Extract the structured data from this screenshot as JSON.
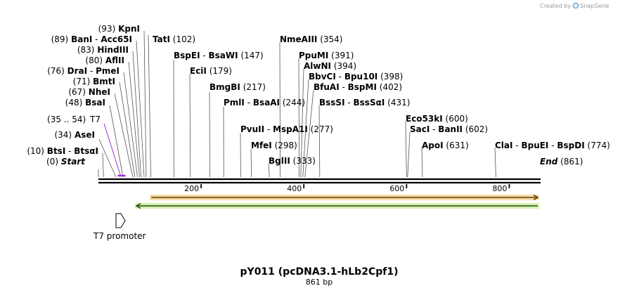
{
  "credit": {
    "prefix": "Created by",
    "brand": "SnapGene",
    "logo_color": "#5aa0d6"
  },
  "sequence": {
    "name": "pY011 (pcDNA3.1-hLb2Cpf1)",
    "length": 861,
    "length_label": "861 bp"
  },
  "ruler": {
    "ticks": [
      200,
      400,
      600,
      800
    ]
  },
  "sites": [
    {
      "pos": "(0)",
      "names": [
        "Start"
      ],
      "italic": true
    },
    {
      "pos": "(10)",
      "names": [
        "BtsI",
        "BtsαI"
      ]
    },
    {
      "pos": "(34)",
      "names": [
        "AseI"
      ]
    },
    {
      "pos": "(48)",
      "names": [
        "BsaI"
      ]
    },
    {
      "pos": "(67)",
      "names": [
        "NheI"
      ]
    },
    {
      "pos": "(71)",
      "names": [
        "BmtI"
      ]
    },
    {
      "pos": "(76)",
      "names": [
        "DraI",
        "PmeI"
      ]
    },
    {
      "pos": "(80)",
      "names": [
        "AflII"
      ]
    },
    {
      "pos": "(83)",
      "names": [
        "HindIII"
      ]
    },
    {
      "pos": "(89)",
      "names": [
        "BanI",
        "Acc65I"
      ]
    },
    {
      "pos": "(93)",
      "names": [
        "KpnI"
      ]
    },
    {
      "pos": "(102)",
      "names": [
        "TatI"
      ]
    },
    {
      "pos": "(147)",
      "names": [
        "BspEI",
        "BsaWI"
      ]
    },
    {
      "pos": "(179)",
      "names": [
        "EciI"
      ]
    },
    {
      "pos": "(217)",
      "names": [
        "BmgBI"
      ]
    },
    {
      "pos": "(244)",
      "names": [
        "PmlI",
        "BsaAI"
      ]
    },
    {
      "pos": "(277)",
      "names": [
        "PvuII",
        "MspA1I"
      ]
    },
    {
      "pos": "(298)",
      "names": [
        "MfeI"
      ]
    },
    {
      "pos": "(333)",
      "names": [
        "BglII"
      ]
    },
    {
      "pos": "(354)",
      "names": [
        "NmeAIII"
      ]
    },
    {
      "pos": "(391)",
      "names": [
        "PpuMI"
      ]
    },
    {
      "pos": "(394)",
      "names": [
        "AlwNI"
      ]
    },
    {
      "pos": "(398)",
      "names": [
        "BbvCI",
        "Bpu10I"
      ]
    },
    {
      "pos": "(402)",
      "names": [
        "BfuAI",
        "BspMI"
      ]
    },
    {
      "pos": "(431)",
      "names": [
        "BssSI",
        "BssSαI"
      ]
    },
    {
      "pos": "(600)",
      "names": [
        "Eco53kI"
      ]
    },
    {
      "pos": "(602)",
      "names": [
        "SacI",
        "BanII"
      ]
    },
    {
      "pos": "(631)",
      "names": [
        "ApoI"
      ]
    },
    {
      "pos": "(774)",
      "names": [
        "ClaI",
        "BpuEI",
        "BspDI"
      ]
    },
    {
      "pos": "(861)",
      "names": [
        "End"
      ],
      "italic": true
    }
  ],
  "primer": {
    "range": "(35 .. 54)",
    "name": "T7",
    "color": "#9b30d0"
  },
  "features": [
    {
      "name": "T7 promoter",
      "start": 35,
      "end": 54,
      "strand": "forward"
    },
    {
      "name": "orange-arrow",
      "start": 103,
      "end": 861,
      "strand": "forward",
      "color": "#f0a030",
      "glow": "#f7dca6",
      "line": "#5a3a00"
    },
    {
      "name": "green-arrow",
      "start": 74,
      "end": 861,
      "strand": "reverse",
      "color": "#3ea82a",
      "glow": "#d6efae",
      "line": "#1e5010"
    }
  ]
}
